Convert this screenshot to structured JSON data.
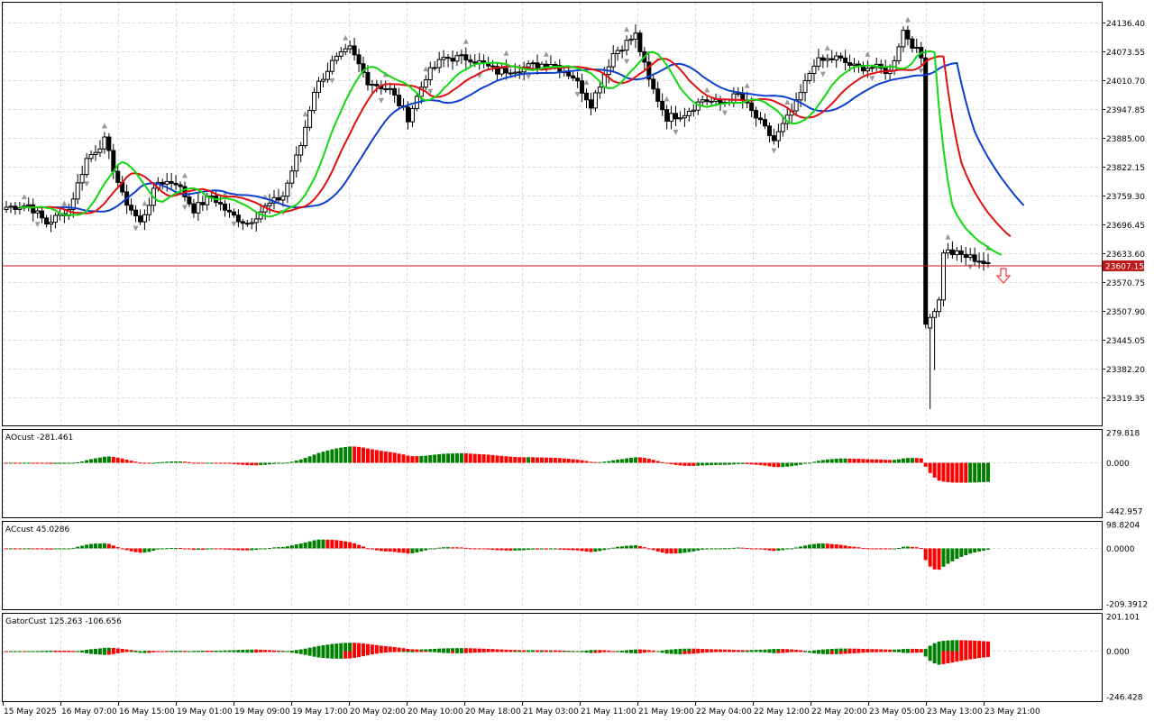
{
  "chart_data": [
    {
      "type": "candlestick",
      "symbol_price_label": "23607.15",
      "current_price": 23607.15,
      "ylim": [
        23290,
        24170
      ],
      "y_ticks": [
        "24136.40",
        "24073.55",
        "24010.70",
        "23947.85",
        "23885.00",
        "23822.15",
        "23759.30",
        "23696.45",
        "23633.60",
        "23570.75",
        "23507.90",
        "23445.05",
        "23382.20",
        "23319.35"
      ],
      "y_tick_values": [
        24136.4,
        24073.55,
        24010.7,
        23947.85,
        23885.0,
        23822.15,
        23759.3,
        23696.45,
        23633.6,
        23570.75,
        23507.9,
        23445.05,
        23382.2,
        23319.35
      ],
      "x_ticks": [
        "15 May 2025",
        "16 May 07:00",
        "16 May 15:00",
        "19 May 01:00",
        "19 May 09:00",
        "19 May 17:00",
        "20 May 02:00",
        "20 May 10:00",
        "20 May 18:00",
        "21 May 03:00",
        "21 May 11:00",
        "21 May 19:00",
        "22 May 04:00",
        "22 May 12:00",
        "22 May 20:00",
        "23 May 05:00",
        "23 May 13:00",
        "23 May 21:00"
      ],
      "alligator_colors": {
        "jaw": "#0b3fd1",
        "teeth": "#e01010",
        "lips": "#11d811"
      },
      "bull_color": "#ffffff",
      "bear_color": "#000000",
      "fractal_color": "#9a9a9a",
      "signal_arrow": "sell-arrow-icon",
      "signal_color": "#ff3030"
    },
    {
      "type": "histogram",
      "title": "AOcust -281.461",
      "y_ticks": [
        "279.818",
        "0.000",
        "-442.957"
      ],
      "ylim": [
        -442.957,
        279.818
      ],
      "colors": {
        "up": "#008000",
        "down": "#ff0000"
      }
    },
    {
      "type": "histogram",
      "title": "ACcust 45.0286",
      "y_ticks": [
        "98.8204",
        "0.0000",
        "-209.3912"
      ],
      "ylim": [
        -209.3912,
        98.8204
      ],
      "colors": {
        "up": "#008000",
        "down": "#ff0000"
      }
    },
    {
      "type": "histogram",
      "title": "GatorCust 125.263 -106.656",
      "y_ticks": [
        "201.101",
        "0.000",
        "-246.428"
      ],
      "ylim": [
        -246.428,
        201.101
      ],
      "colors": {
        "up": "#008000",
        "down": "#ff0000"
      }
    }
  ]
}
